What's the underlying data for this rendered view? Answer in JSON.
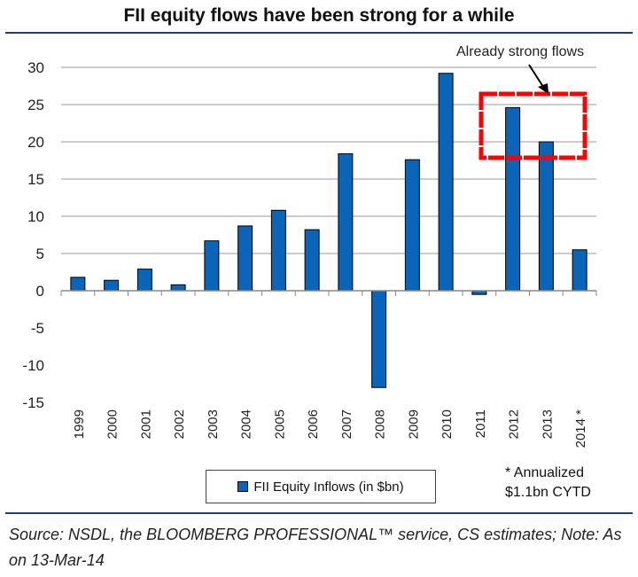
{
  "chart_data": {
    "type": "bar",
    "title": "FII equity flows have been strong for a while",
    "categories": [
      "1999",
      "2000",
      "2001",
      "2002",
      "2003",
      "2004",
      "2005",
      "2006",
      "2007",
      "2008",
      "2009",
      "2010",
      "2011",
      "2012",
      "2013",
      "2014 *"
    ],
    "series": [
      {
        "name": "FII Equity Inflows (in $bn)",
        "values": [
          1.8,
          1.4,
          2.9,
          0.8,
          6.7,
          8.7,
          10.8,
          8.2,
          18.4,
          -13.0,
          17.6,
          29.2,
          -0.5,
          24.6,
          20.0,
          5.5
        ]
      }
    ],
    "ylim": [
      -15,
      30
    ],
    "yticks": [
      30,
      25,
      20,
      15,
      10,
      5,
      0,
      -5,
      -10,
      -15
    ],
    "grid": true,
    "legend_position": "bottom",
    "bar_color": "#0a64b8",
    "annotation": {
      "text": "Already strong flows",
      "highlight": [
        "2012",
        "2013"
      ],
      "highlight_color": "#ff0000"
    },
    "footnote": [
      "* Annualized",
      "$1.1bn CYTD"
    ]
  },
  "source": "Source: NSDL, the BLOOMBERG PROFESSIONAL™ service, CS estimates; Note: As on 13-Mar-14"
}
